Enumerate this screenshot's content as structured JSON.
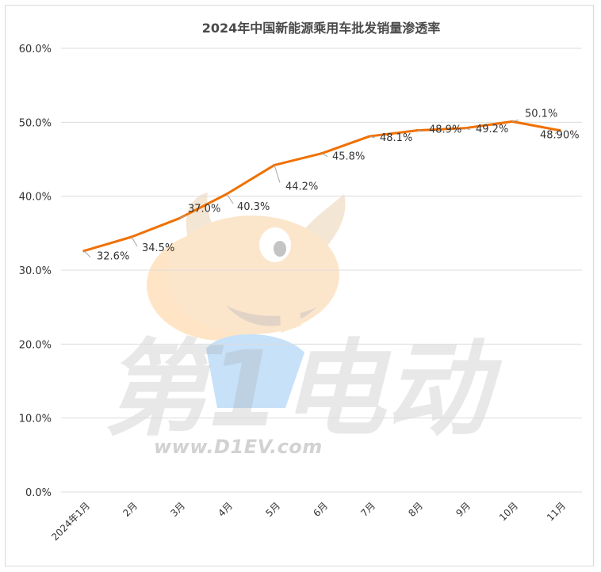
{
  "chart_data": {
    "type": "line",
    "title": "2024年中国新能源乘用车批发销量渗透率",
    "categories": [
      "2024年1月",
      "2月",
      "3月",
      "4月",
      "5月",
      "6月",
      "7月",
      "8月",
      "9月",
      "10月",
      "11月"
    ],
    "values": [
      32.6,
      34.5,
      37.0,
      40.3,
      44.2,
      45.8,
      48.1,
      48.9,
      49.2,
      50.1,
      48.9
    ],
    "data_labels": [
      "32.6%",
      "34.5%",
      "37.0%",
      "40.3%",
      "44.2%",
      "45.8%",
      "48.1%",
      "48.9%",
      "49.2%",
      "50.1%",
      "48.90%"
    ],
    "y_ticks": [
      "0.0%",
      "10.0%",
      "20.0%",
      "30.0%",
      "40.0%",
      "50.0%",
      "60.0%"
    ],
    "ylim": [
      0,
      60
    ],
    "xlabel": "",
    "ylabel": "",
    "grid": true,
    "legend": "none",
    "line_color": "#f07000"
  },
  "watermark": {
    "brand_text": "第1电动",
    "url": "www.D1EV.com"
  },
  "colors": {
    "line": "#f07000",
    "grid": "#dcdcdc",
    "text": "#333333"
  }
}
